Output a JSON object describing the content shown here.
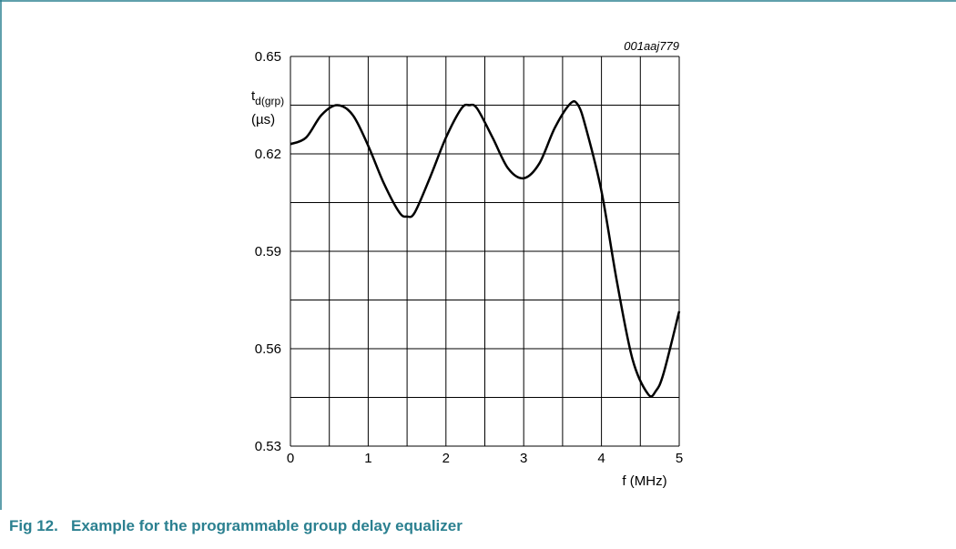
{
  "chart_data": {
    "type": "line",
    "code": "001aaj779",
    "ylabel": "t",
    "ylabel_sub": "d(grp)",
    "ylabel_unit": "(µs)",
    "xlabel": "f (MHz)",
    "caption": "Fig 12.   Example for the programmable group delay equalizer",
    "x": [
      0,
      0.2,
      0.4,
      0.6,
      0.8,
      1.0,
      1.2,
      1.4,
      1.5,
      1.6,
      1.8,
      2.0,
      2.2,
      2.3,
      2.4,
      2.6,
      2.8,
      3.0,
      3.2,
      3.4,
      3.6,
      3.7,
      3.8,
      4.0,
      4.2,
      4.4,
      4.6,
      4.7,
      4.8,
      5.0
    ],
    "series": [
      {
        "color": "#000000",
        "values": [
          0.623,
          0.625,
          0.632,
          0.635,
          0.632,
          0.6225,
          0.611,
          0.602,
          0.6007,
          0.602,
          0.613,
          0.625,
          0.634,
          0.635,
          0.634,
          0.625,
          0.6155,
          0.6125,
          0.617,
          0.628,
          0.6355,
          0.635,
          0.628,
          0.6085,
          0.5805,
          0.5567,
          0.546,
          0.547,
          0.5525,
          0.5715
        ]
      }
    ],
    "xlim": [
      0,
      5
    ],
    "ylim": [
      0.53,
      0.65
    ],
    "xticks": [
      0,
      1,
      2,
      3,
      4,
      5
    ],
    "yticks": [
      0.53,
      0.56,
      0.59,
      0.62,
      0.65
    ],
    "xgrid": [
      0,
      0.5,
      1,
      1.5,
      2,
      2.5,
      3,
      3.5,
      4,
      4.5,
      5
    ],
    "ygrid": [
      0.53,
      0.545,
      0.56,
      0.575,
      0.59,
      0.605,
      0.62,
      0.635,
      0.65
    ],
    "grid": true
  }
}
